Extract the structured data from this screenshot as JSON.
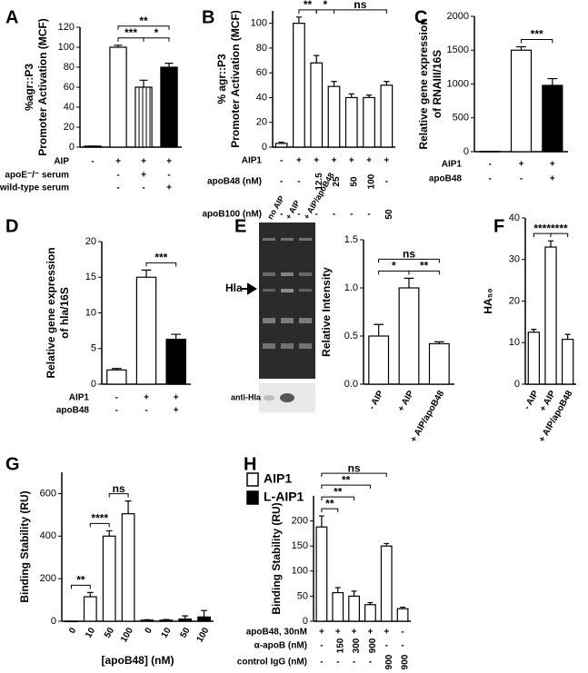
{
  "chart_data": [
    {
      "type": "bar",
      "panel": "A",
      "ylabel": [
        "%agr::P3",
        "Promoter Activation (MCF)"
      ],
      "ylim": [
        0,
        120
      ],
      "yticks": [
        0,
        20,
        40,
        60,
        80,
        100,
        120
      ],
      "values": [
        1,
        100,
        60,
        80
      ],
      "errors": [
        0,
        2,
        7,
        4
      ],
      "colors": [
        "#ffffff",
        "#ffffff",
        "#ffffff",
        "#000000"
      ],
      "hatch": [
        false,
        false,
        true,
        false
      ],
      "conditions": [
        {
          "label": "AIP",
          "values": [
            "-",
            "+",
            "+",
            "+"
          ]
        },
        {
          "label": "apoE⁻/⁻ serum",
          "values": [
            null,
            "-",
            "+",
            "-"
          ]
        },
        {
          "label": "wild-type serum",
          "values": [
            null,
            "-",
            "-",
            "+"
          ]
        }
      ],
      "brackets": [
        {
          "label": "***",
          "between": [
            1,
            2
          ]
        },
        {
          "label": "*",
          "between": [
            2,
            3
          ]
        },
        {
          "label": "**",
          "between": [
            1,
            3
          ]
        }
      ]
    },
    {
      "type": "bar",
      "panel": "B",
      "ylabel": [
        "% agr::P3",
        "Promoter Activation (MCF)"
      ],
      "ylim": [
        0,
        110
      ],
      "yticks": [
        0,
        20,
        40,
        60,
        80,
        100
      ],
      "values": [
        3,
        100,
        68,
        49,
        40,
        40,
        50
      ],
      "errors": [
        1,
        5,
        6,
        4,
        3,
        2,
        3
      ],
      "colors": [
        "#ffffff",
        "#ffffff",
        "#ffffff",
        "#ffffff",
        "#ffffff",
        "#ffffff",
        "#ffffff"
      ],
      "conditions": [
        {
          "label": "AIP1",
          "values": [
            "-",
            "+",
            "+",
            "+",
            "+",
            "+",
            "+"
          ]
        },
        {
          "label": "apoB48 (nM)",
          "values": [
            "-",
            "-",
            "12.5",
            "25",
            "50",
            "100",
            "-"
          ]
        },
        {
          "label": "apoB100 (nM)",
          "values": [
            "-",
            "-",
            "-",
            "-",
            "-",
            "-",
            "50"
          ]
        }
      ],
      "brackets": [
        {
          "label": "**",
          "between": [
            1,
            2
          ]
        },
        {
          "label": "*",
          "between": [
            2,
            3
          ]
        },
        {
          "label": "ns",
          "between": [
            3,
            6
          ]
        }
      ]
    },
    {
      "type": "bar",
      "panel": "C",
      "ylabel": [
        "Relative gene expression",
        "of RNAIII/16S"
      ],
      "ylim": [
        0,
        2000
      ],
      "yticks": [
        0,
        500,
        1000,
        1500,
        2000
      ],
      "values": [
        5,
        1500,
        980
      ],
      "errors": [
        0,
        50,
        100
      ],
      "colors": [
        "#ffffff",
        "#ffffff",
        "#000000"
      ],
      "conditions": [
        {
          "label": "AIP1",
          "values": [
            "-",
            "+",
            "+"
          ]
        },
        {
          "label": "apoB48",
          "values": [
            "-",
            "-",
            "+"
          ]
        }
      ],
      "brackets": [
        {
          "label": "***",
          "between": [
            1,
            2
          ]
        }
      ]
    },
    {
      "type": "bar",
      "panel": "D",
      "ylabel": [
        "Relative gene expression",
        "of hla/16S"
      ],
      "ylim": [
        0,
        20
      ],
      "yticks": [
        0,
        5,
        10,
        15,
        20
      ],
      "values": [
        2,
        15,
        6.3
      ],
      "errors": [
        0.2,
        1,
        0.7
      ],
      "colors": [
        "#ffffff",
        "#ffffff",
        "#000000"
      ],
      "conditions": [
        {
          "label": "AIP1",
          "values": [
            "-",
            "+",
            "+"
          ]
        },
        {
          "label": "apoB48",
          "values": [
            "-",
            "-",
            "+"
          ]
        }
      ],
      "brackets": [
        {
          "label": "***",
          "between": [
            1,
            2
          ]
        }
      ]
    },
    {
      "type": "bar",
      "panel": "E",
      "ylabel": [
        "Relative Intensity"
      ],
      "ylim": [
        0,
        1.5
      ],
      "yticks": [
        {
          "value": 0,
          "label": "0.0"
        },
        0.5,
        {
          "value": 1,
          "label": "1.0"
        },
        1.5
      ],
      "categories": [
        "- AIP",
        "+ AIP",
        "+ AIP/apoB48"
      ],
      "values": [
        0.5,
        1.0,
        0.42
      ],
      "errors": [
        0.12,
        0.1,
        0.02
      ],
      "colors": [
        "#ffffff",
        "#ffffff",
        "#ffffff"
      ],
      "brackets": [
        {
          "label": "*",
          "between": [
            0,
            1
          ]
        },
        {
          "label": "**",
          "between": [
            1,
            2
          ]
        },
        {
          "label": "ns",
          "between": [
            0,
            2
          ]
        }
      ]
    },
    {
      "type": "bar",
      "panel": "F",
      "ylabel": [
        "HA₅₀"
      ],
      "ylim": [
        0,
        40
      ],
      "yticks": [
        0,
        10,
        20,
        30,
        40
      ],
      "categories": [
        "- AIP",
        "+ AIP",
        "+ AIP/apoB48"
      ],
      "values": [
        12.5,
        33,
        10.8
      ],
      "errors": [
        0.7,
        1.5,
        1.2
      ],
      "colors": [
        "#ffffff",
        "#ffffff",
        "#ffffff"
      ],
      "brackets": [
        {
          "label": "****",
          "between": [
            0,
            1
          ]
        },
        {
          "label": "****",
          "between": [
            1,
            2
          ]
        }
      ]
    },
    {
      "type": "bar",
      "panel": "G",
      "ylabel": [
        "Binding Stability (RU)"
      ],
      "xlabel": "[apoB48] (nM)",
      "ylim": [
        0,
        700
      ],
      "yticks": [
        0,
        200,
        400,
        600
      ],
      "categories": [
        "0",
        "10",
        "50",
        "100",
        "0",
        "10",
        "50",
        "100"
      ],
      "values": [
        0,
        115,
        400,
        505,
        5,
        5,
        10,
        20
      ],
      "errors": [
        0,
        20,
        25,
        60,
        2,
        3,
        15,
        30
      ],
      "colors": [
        "#ffffff",
        "#ffffff",
        "#ffffff",
        "#ffffff",
        "#000000",
        "#000000",
        "#000000",
        "#000000"
      ],
      "legend": [
        {
          "name": "AIP1",
          "color": "#ffffff"
        },
        {
          "name": "L-AIP1",
          "color": "#000000"
        }
      ],
      "brackets": [
        {
          "label": "**",
          "between": [
            0,
            1
          ]
        },
        {
          "label": "****",
          "between": [
            1,
            2
          ]
        },
        {
          "label": "ns",
          "between": [
            2,
            3
          ]
        }
      ]
    },
    {
      "type": "bar",
      "panel": "H",
      "ylabel": [
        "Binding Stability (RU)"
      ],
      "ylim": [
        0,
        250
      ],
      "yticks": [
        0,
        50,
        100,
        150,
        200
      ],
      "values": [
        188,
        57,
        50,
        33,
        150,
        25
      ],
      "errors": [
        22,
        10,
        10,
        4,
        5,
        3
      ],
      "colors": [
        "#ffffff",
        "#ffffff",
        "#ffffff",
        "#ffffff",
        "#ffffff",
        "#ffffff"
      ],
      "conditions": [
        {
          "label": "apoB48, 30nM",
          "values": [
            "+",
            "+",
            "+",
            "+",
            "+",
            "-"
          ]
        },
        {
          "label": "α-apoB (nM)",
          "values": [
            "-",
            "150",
            "300",
            "900",
            "-",
            "-"
          ]
        },
        {
          "label": "control IgG (nM)",
          "values": [
            "-",
            "-",
            "-",
            "-",
            "900",
            "900"
          ]
        }
      ],
      "brackets": [
        {
          "label": "**",
          "between": [
            0,
            1
          ]
        },
        {
          "label": "**",
          "between": [
            0,
            2
          ]
        },
        {
          "label": "**",
          "between": [
            0,
            3
          ]
        },
        {
          "label": "ns",
          "between": [
            0,
            4
          ]
        }
      ]
    }
  ],
  "gel": {
    "lanes": [
      "no AIP",
      "+ AIP",
      "+ AIP/apoB48"
    ],
    "band": "Hla",
    "blot": "anti-Hla"
  }
}
